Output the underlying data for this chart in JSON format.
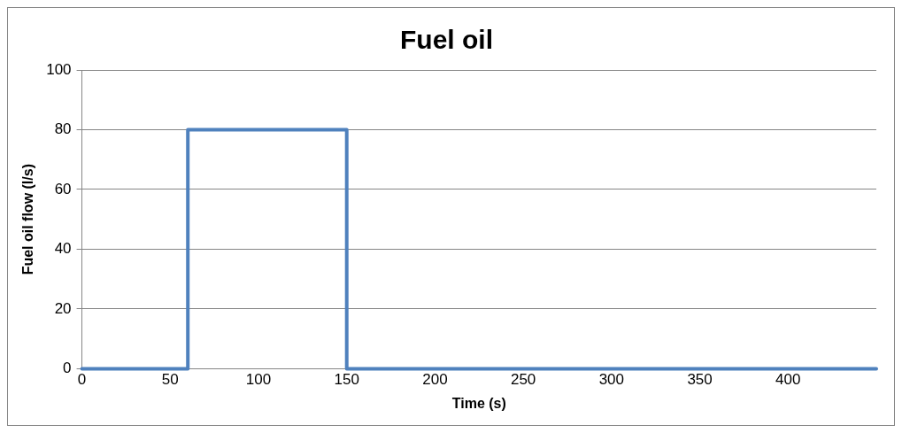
{
  "chart_data": {
    "type": "step",
    "title": "Fuel oil",
    "xlabel": "Time (s)",
    "ylabel": "Fuel oil flow (l/s)",
    "x": [
      0,
      60,
      150,
      450
    ],
    "series": [
      {
        "color": "#4f81bd",
        "values": [
          0,
          80,
          0,
          0
        ]
      }
    ],
    "xlim": [
      0,
      450
    ],
    "xticks": [
      0,
      50,
      100,
      150,
      200,
      250,
      300,
      350,
      400
    ],
    "ylim": [
      0,
      100
    ],
    "yticks": [
      0,
      20,
      40,
      60,
      80,
      100
    ],
    "grid": "y",
    "legend": false,
    "marker": "none",
    "line_style": "solid"
  }
}
